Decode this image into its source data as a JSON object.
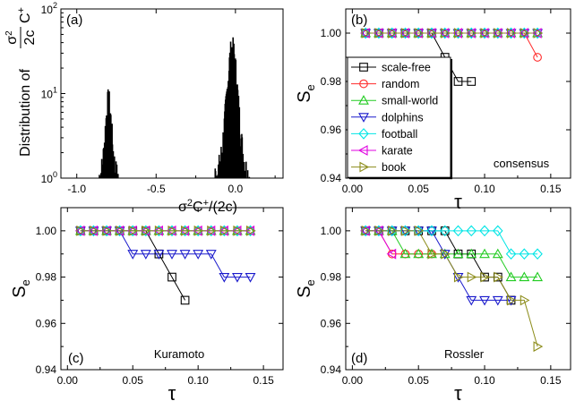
{
  "chart_data": [
    {
      "panel": "(a)",
      "type": "histogram",
      "title": "",
      "xlabel": "σ2C+/(2c)",
      "xlabel_parts": {
        "sigma": "σ",
        "sup2": "2",
        "c": "C",
        "supplus": "+",
        "rest": "/(2c)"
      },
      "ylabel": "Distribution of σ2/2c C+",
      "ylabel_parts": {
        "prefix": "Distribution of",
        "num": "σ",
        "num_sup": "2",
        "den": "2c",
        "c": "C",
        "c_sup": "+"
      },
      "yscale": "log",
      "xlim": [
        -1.1,
        0.3
      ],
      "ylim": [
        1,
        100
      ],
      "x_ticks": [
        -1.0,
        -0.5,
        0.0
      ],
      "x_tick_labels": [
        "-1.0",
        "-0.5",
        "0.0"
      ],
      "y_tick_labels": [
        {
          "base": "10",
          "exp": "0"
        },
        {
          "base": "10",
          "exp": "1"
        },
        {
          "base": "10",
          "exp": "2"
        }
      ],
      "peaks": [
        {
          "center": -0.8,
          "width": 0.12,
          "max": 8
        },
        {
          "center": -0.02,
          "width": 0.22,
          "max": 33
        }
      ]
    },
    {
      "panel": "(b)",
      "type": "line",
      "xlabel": "τ",
      "ylabel": "Se",
      "ylabel_parts": {
        "main": "S",
        "sub": "e"
      },
      "annotation": "consensus",
      "xlim": [
        -0.005,
        0.165
      ],
      "ylim": [
        0.94,
        1.01
      ],
      "x_ticks": [
        0.0,
        0.05,
        0.1,
        0.15
      ],
      "x_tick_labels": [
        "0.00",
        "0.05",
        "0.10",
        "0.15"
      ],
      "y_ticks": [
        0.94,
        0.96,
        0.98,
        1.0
      ],
      "y_tick_labels": [
        "0.94",
        "0.96",
        "0.98",
        "1.00"
      ],
      "legend": {
        "placement": "center-left",
        "entries": [
          "scale-free",
          "random",
          "small-world",
          "dolphins",
          "football",
          "karate",
          "book"
        ]
      },
      "x": [
        0.01,
        0.02,
        0.03,
        0.04,
        0.05,
        0.06,
        0.07,
        0.08,
        0.09,
        0.1,
        0.11,
        0.12,
        0.13,
        0.14
      ],
      "series": [
        {
          "name": "scale-free",
          "values": [
            1.0,
            1.0,
            1.0,
            1.0,
            1.0,
            1.0,
            0.99,
            0.98,
            0.98,
            null,
            null,
            null,
            null,
            null
          ]
        },
        {
          "name": "random",
          "values": [
            1.0,
            1.0,
            1.0,
            1.0,
            1.0,
            1.0,
            1.0,
            1.0,
            1.0,
            1.0,
            1.0,
            1.0,
            1.0,
            0.99
          ]
        },
        {
          "name": "small-world",
          "values": [
            1.0,
            1.0,
            1.0,
            1.0,
            1.0,
            1.0,
            1.0,
            1.0,
            1.0,
            1.0,
            1.0,
            1.0,
            1.0,
            1.0
          ]
        },
        {
          "name": "dolphins",
          "values": [
            1.0,
            1.0,
            1.0,
            1.0,
            1.0,
            1.0,
            1.0,
            1.0,
            1.0,
            1.0,
            1.0,
            1.0,
            1.0,
            1.0
          ]
        },
        {
          "name": "football",
          "values": [
            1.0,
            1.0,
            1.0,
            1.0,
            1.0,
            1.0,
            1.0,
            1.0,
            1.0,
            1.0,
            1.0,
            1.0,
            1.0,
            1.0
          ]
        },
        {
          "name": "karate",
          "values": [
            1.0,
            1.0,
            1.0,
            1.0,
            1.0,
            1.0,
            1.0,
            1.0,
            1.0,
            1.0,
            1.0,
            1.0,
            1.0,
            1.0
          ]
        },
        {
          "name": "book",
          "values": [
            1.0,
            1.0,
            1.0,
            1.0,
            1.0,
            1.0,
            1.0,
            1.0,
            1.0,
            1.0,
            1.0,
            1.0,
            1.0,
            1.0
          ]
        }
      ]
    },
    {
      "panel": "(c)",
      "type": "line",
      "xlabel": "τ",
      "ylabel": "Se",
      "ylabel_parts": {
        "main": "S",
        "sub": "e"
      },
      "annotation": "Kuramoto",
      "xlim": [
        -0.005,
        0.165
      ],
      "ylim": [
        0.94,
        1.01
      ],
      "x_ticks": [
        0.0,
        0.05,
        0.1,
        0.15
      ],
      "x_tick_labels": [
        "0.00",
        "0.05",
        "0.10",
        "0.15"
      ],
      "y_ticks": [
        0.94,
        0.96,
        0.98,
        1.0
      ],
      "y_tick_labels": [
        "0.94",
        "0.96",
        "0.98",
        "1.00"
      ],
      "x": [
        0.01,
        0.02,
        0.03,
        0.04,
        0.05,
        0.06,
        0.07,
        0.08,
        0.09,
        0.1,
        0.11,
        0.12,
        0.13,
        0.14
      ],
      "series": [
        {
          "name": "scale-free",
          "values": [
            1.0,
            1.0,
            1.0,
            1.0,
            1.0,
            1.0,
            0.99,
            0.98,
            0.97,
            null,
            null,
            null,
            null,
            null
          ]
        },
        {
          "name": "random",
          "values": [
            1.0,
            1.0,
            1.0,
            1.0,
            1.0,
            1.0,
            1.0,
            1.0,
            1.0,
            1.0,
            1.0,
            1.0,
            1.0,
            1.0
          ]
        },
        {
          "name": "small-world",
          "values": [
            1.0,
            1.0,
            1.0,
            1.0,
            1.0,
            1.0,
            1.0,
            1.0,
            1.0,
            1.0,
            1.0,
            1.0,
            1.0,
            1.0
          ]
        },
        {
          "name": "dolphins",
          "values": [
            1.0,
            1.0,
            1.0,
            1.0,
            0.99,
            0.99,
            0.99,
            0.99,
            0.99,
            0.99,
            0.99,
            0.98,
            0.98,
            0.98
          ]
        },
        {
          "name": "football",
          "values": [
            1.0,
            1.0,
            1.0,
            1.0,
            1.0,
            1.0,
            1.0,
            1.0,
            1.0,
            1.0,
            1.0,
            1.0,
            1.0,
            1.0
          ]
        },
        {
          "name": "karate",
          "values": [
            1.0,
            1.0,
            1.0,
            1.0,
            1.0,
            1.0,
            1.0,
            1.0,
            1.0,
            1.0,
            1.0,
            1.0,
            1.0,
            1.0
          ]
        },
        {
          "name": "book",
          "values": [
            1.0,
            1.0,
            1.0,
            1.0,
            1.0,
            1.0,
            1.0,
            1.0,
            1.0,
            1.0,
            1.0,
            1.0,
            1.0,
            1.0
          ]
        }
      ]
    },
    {
      "panel": "(d)",
      "type": "line",
      "xlabel": "τ",
      "ylabel": "Se",
      "ylabel_parts": {
        "main": "S",
        "sub": "e"
      },
      "annotation": "Rossler",
      "xlim": [
        -0.005,
        0.165
      ],
      "ylim": [
        0.94,
        1.01
      ],
      "x_ticks": [
        0.0,
        0.05,
        0.1,
        0.15
      ],
      "x_tick_labels": [
        "0.00",
        "0.05",
        "0.10",
        "0.15"
      ],
      "y_ticks": [
        0.94,
        0.96,
        0.98,
        1.0
      ],
      "y_tick_labels": [
        "0.94",
        "0.96",
        "0.98",
        "1.00"
      ],
      "x": [
        0.01,
        0.02,
        0.03,
        0.04,
        0.05,
        0.06,
        0.07,
        0.08,
        0.09,
        0.1,
        0.11,
        0.12,
        0.13,
        0.14
      ],
      "series": [
        {
          "name": "scale-free",
          "values": [
            1.0,
            1.0,
            1.0,
            1.0,
            1.0,
            1.0,
            1.0,
            0.99,
            0.99,
            0.98,
            0.98,
            0.97,
            null,
            null
          ]
        },
        {
          "name": "random",
          "values": [
            1.0,
            1.0,
            0.99,
            0.99,
            0.99,
            0.99,
            null,
            null,
            null,
            null,
            null,
            null,
            null,
            null
          ]
        },
        {
          "name": "small-world",
          "values": [
            1.0,
            1.0,
            1.0,
            0.99,
            0.99,
            0.99,
            0.99,
            0.99,
            0.99,
            0.99,
            0.99,
            0.98,
            0.98,
            0.98
          ]
        },
        {
          "name": "dolphins",
          "values": [
            1.0,
            1.0,
            1.0,
            1.0,
            1.0,
            1.0,
            0.99,
            0.98,
            0.97,
            0.97,
            0.97,
            0.97,
            null,
            null
          ]
        },
        {
          "name": "football",
          "values": [
            1.0,
            1.0,
            1.0,
            1.0,
            1.0,
            1.0,
            1.0,
            1.0,
            1.0,
            1.0,
            1.0,
            0.99,
            0.99,
            0.99
          ]
        },
        {
          "name": "karate",
          "values": [
            1.0,
            1.0,
            0.99,
            null,
            null,
            null,
            null,
            null,
            null,
            null,
            null,
            null,
            null,
            null
          ]
        },
        {
          "name": "book",
          "values": [
            1.0,
            1.0,
            1.0,
            1.0,
            1.0,
            0.99,
            0.99,
            0.98,
            0.98,
            0.98,
            0.98,
            0.97,
            0.97,
            0.95
          ]
        }
      ]
    }
  ],
  "series_style": {
    "scale-free": {
      "color": "#000000",
      "marker": "square"
    },
    "random": {
      "color": "#ff2a2a",
      "marker": "circle"
    },
    "small-world": {
      "color": "#22cc22",
      "marker": "triangle-up"
    },
    "dolphins": {
      "color": "#1a1acc",
      "marker": "triangle-down"
    },
    "football": {
      "color": "#00e5e5",
      "marker": "diamond"
    },
    "karate": {
      "color": "#e000e0",
      "marker": "triangle-left"
    },
    "book": {
      "color": "#8c8c1a",
      "marker": "triangle-right"
    }
  }
}
